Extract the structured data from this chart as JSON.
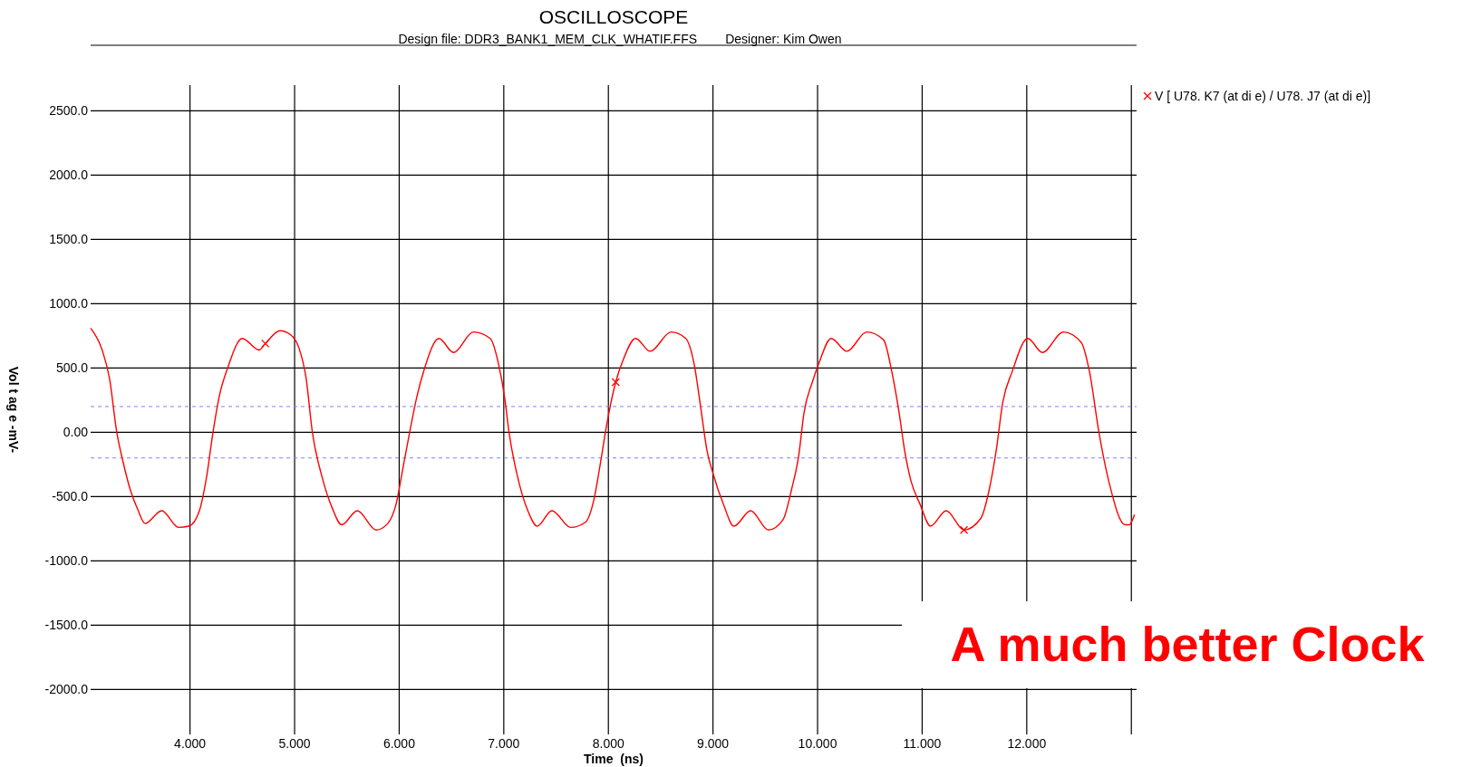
{
  "chart_data": {
    "type": "line",
    "title": "OSCILLOSCOPE",
    "subtitle": "Design file: DDR3_BANK1_MEM_CLK_WHATIF.FFS        Designer: Kim Owen",
    "xlabel": "Time  (ns)",
    "ylabel": "Vol t ag e -mV-",
    "xlim": [
      3.05,
      13.05
    ],
    "ylim": [
      -2350,
      2700
    ],
    "xticks": [
      {
        "value": 4,
        "label": "4.000"
      },
      {
        "value": 5,
        "label": "5.000"
      },
      {
        "value": 6,
        "label": "6.000"
      },
      {
        "value": 7,
        "label": "7.000"
      },
      {
        "value": 8,
        "label": "8.000"
      },
      {
        "value": 9,
        "label": "9.000"
      },
      {
        "value": 10,
        "label": "10.000"
      },
      {
        "value": 11,
        "label": "11.000"
      },
      {
        "value": 12,
        "label": "12.000"
      },
      {
        "value": 13,
        "label": null
      }
    ],
    "yticks": [
      {
        "value": 2500,
        "label": "2500.0"
      },
      {
        "value": 2000,
        "label": "2000.0"
      },
      {
        "value": 1500,
        "label": "1500.0"
      },
      {
        "value": 1000,
        "label": "1000.0"
      },
      {
        "value": 500,
        "label": "500.0"
      },
      {
        "value": 0,
        "label": "0.00"
      },
      {
        "value": -500,
        "label": "-500.0"
      },
      {
        "value": -1000,
        "label": "-1000.0"
      },
      {
        "value": -1500,
        "label": "-1500.0"
      },
      {
        "value": -2000,
        "label": "-2000.0"
      }
    ],
    "grid": true,
    "legend": "top right",
    "marker": "cross",
    "ref_lines": [
      {
        "axis": "y",
        "value": 200,
        "color": "#8080ff",
        "line_style": "dashed"
      },
      {
        "axis": "y",
        "value": -200,
        "color": "#8080ff",
        "line_style": "dashed"
      }
    ],
    "annotations": [
      "A much better Clock"
    ],
    "series": [
      {
        "name": "V [ U78. K7 (at di e) / U78. J7 (at di e)]",
        "type": "line",
        "color": "#ff0000",
        "marker": "none",
        "x": [
          3.05,
          3.16,
          3.23,
          3.3,
          3.36,
          3.43,
          3.5,
          3.57,
          3.73,
          3.89,
          3.99,
          4.09,
          4.16,
          4.22,
          4.28,
          4.36,
          4.5,
          4.66,
          4.72,
          4.86,
          4.96,
          5.04,
          5.11,
          5.17,
          5.26,
          5.36,
          5.45,
          5.6,
          5.78,
          5.89,
          5.97,
          6.04,
          6.1,
          6.17,
          6.24,
          6.38,
          6.52,
          6.71,
          6.87,
          6.95,
          7.01,
          7.05,
          7.13,
          7.23,
          7.32,
          7.46,
          7.64,
          7.78,
          7.86,
          7.93,
          7.98,
          8.07,
          8.14,
          8.26,
          8.4,
          8.6,
          8.74,
          8.82,
          8.89,
          8.94,
          9.0,
          9.1,
          9.2,
          9.36,
          9.53,
          9.67,
          9.75,
          9.82,
          9.87,
          9.95,
          10.01,
          10.13,
          10.28,
          10.47,
          10.63,
          10.71,
          10.78,
          10.83,
          10.89,
          10.98,
          11.08,
          11.23,
          11.4,
          11.56,
          11.64,
          11.71,
          11.77,
          11.86,
          12.01,
          12.15,
          12.35,
          12.52,
          12.6,
          12.69,
          12.79,
          12.94,
          12.98,
          13.03
        ],
        "values": [
          810,
          640,
          420,
          0,
          -230,
          -450,
          -600,
          -710,
          -610,
          -740,
          -730,
          -610,
          -340,
          0,
          280,
          500,
          730,
          640,
          690,
          790,
          760,
          660,
          420,
          0,
          -340,
          -590,
          -720,
          -610,
          -760,
          -710,
          -560,
          -260,
          0,
          280,
          490,
          730,
          620,
          780,
          730,
          530,
          260,
          0,
          -340,
          -610,
          -730,
          -610,
          -740,
          -700,
          -530,
          -210,
          40,
          390,
          560,
          730,
          630,
          780,
          730,
          530,
          150,
          -130,
          -320,
          -560,
          -730,
          -610,
          -760,
          -680,
          -450,
          -180,
          150,
          390,
          530,
          730,
          630,
          780,
          720,
          470,
          150,
          -130,
          -370,
          -560,
          -730,
          -610,
          -760,
          -670,
          -450,
          -130,
          230,
          470,
          730,
          620,
          780,
          700,
          470,
          0,
          -400,
          -720,
          -720,
          -640
        ]
      },
      {
        "type": "scatter",
        "color": "#ff0000",
        "marker": "cross",
        "x": [
          4.72,
          8.07,
          11.4
        ],
        "values": [
          690,
          390,
          -760
        ]
      }
    ]
  }
}
